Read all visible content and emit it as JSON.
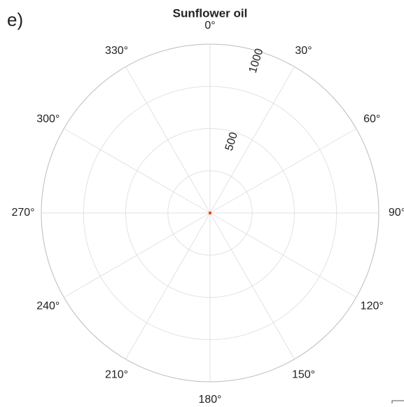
{
  "chart_data": {
    "type": "polar",
    "title": "Sunflower oil",
    "panel_label": "e)",
    "theta_zero": "top",
    "theta_direction": "clockwise",
    "rlim": [
      0,
      1000
    ],
    "rgrid": [
      250,
      500,
      750,
      1000
    ],
    "rticks": [
      500,
      1000
    ],
    "rtick_angle": 17,
    "thetaticks": [
      {
        "value": 0,
        "label": "0°"
      },
      {
        "value": 30,
        "label": "30°"
      },
      {
        "value": 60,
        "label": "60°"
      },
      {
        "value": 90,
        "label": "90°"
      },
      {
        "value": 120,
        "label": "120°"
      },
      {
        "value": 150,
        "label": "150°"
      },
      {
        "value": 180,
        "label": "180°"
      },
      {
        "value": 210,
        "label": "210°"
      },
      {
        "value": 240,
        "label": "240°"
      },
      {
        "value": 270,
        "label": "270°"
      },
      {
        "value": 300,
        "label": "300°"
      },
      {
        "value": 330,
        "label": "330°"
      }
    ],
    "grid": true,
    "series": [
      {
        "color": "#ff3b1f",
        "theta": [
          0
        ],
        "r": [
          0
        ]
      }
    ]
  }
}
